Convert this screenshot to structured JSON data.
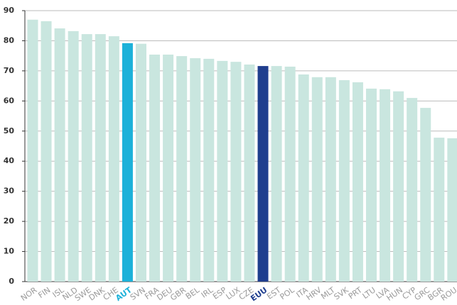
{
  "chart_data": {
    "type": "bar",
    "categories": [
      "NOR",
      "FIN",
      "ISL",
      "NLD",
      "SWE",
      "DNK",
      "CHE",
      "AUT",
      "SVN",
      "FRA",
      "DEU",
      "GBR",
      "BEL",
      "IRL",
      "ESP",
      "LUX",
      "CZE",
      "EUU",
      "EST",
      "POL",
      "ITA",
      "HRV",
      "MLT",
      "SVK",
      "PRT",
      "LTU",
      "LVA",
      "HUN",
      "CYP",
      "GRC",
      "BGR",
      "ROU"
    ],
    "values": [
      87,
      86.5,
      84.1,
      83.2,
      82.2,
      82.2,
      81.5,
      79.2,
      79,
      75.4,
      75.4,
      74.9,
      74.2,
      74,
      73.3,
      73,
      72.1,
      71.6,
      71.6,
      71.4,
      68.8,
      67.9,
      67.9,
      66.9,
      66.2,
      64.1,
      63.9,
      63.2,
      61,
      57.7,
      47.8,
      47.6
    ],
    "colors": [
      "#c9e6df",
      "#c9e6df",
      "#c9e6df",
      "#c9e6df",
      "#c9e6df",
      "#c9e6df",
      "#c9e6df",
      "#1db1d9",
      "#c9e6df",
      "#c9e6df",
      "#c9e6df",
      "#c9e6df",
      "#c9e6df",
      "#c9e6df",
      "#c9e6df",
      "#c9e6df",
      "#c9e6df",
      "#1f3e8e",
      "#c9e6df",
      "#c9e6df",
      "#c9e6df",
      "#c9e6df",
      "#c9e6df",
      "#c9e6df",
      "#c9e6df",
      "#c9e6df",
      "#c9e6df",
      "#c9e6df",
      "#c9e6df",
      "#c9e6df",
      "#c9e6df",
      "#c9e6df"
    ],
    "label_colors": [
      "#9a9a9a",
      "#9a9a9a",
      "#9a9a9a",
      "#9a9a9a",
      "#9a9a9a",
      "#9a9a9a",
      "#9a9a9a",
      "#1db1d9",
      "#9a9a9a",
      "#9a9a9a",
      "#9a9a9a",
      "#9a9a9a",
      "#9a9a9a",
      "#9a9a9a",
      "#9a9a9a",
      "#9a9a9a",
      "#9a9a9a",
      "#1f3e8e",
      "#9a9a9a",
      "#9a9a9a",
      "#9a9a9a",
      "#9a9a9a",
      "#9a9a9a",
      "#9a9a9a",
      "#9a9a9a",
      "#9a9a9a",
      "#9a9a9a",
      "#9a9a9a",
      "#9a9a9a",
      "#9a9a9a",
      "#9a9a9a",
      "#9a9a9a"
    ],
    "ylim": [
      0,
      90
    ],
    "yticks": [
      0,
      10,
      20,
      30,
      40,
      50,
      60,
      70,
      80,
      90
    ],
    "grid": true
  }
}
